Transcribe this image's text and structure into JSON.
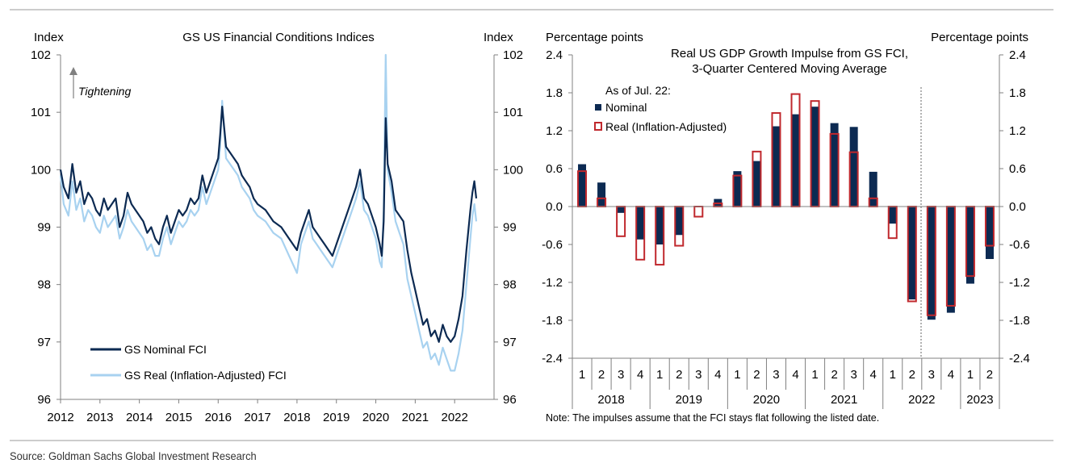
{
  "source": "Source: Goldman Sachs Global Investment Research",
  "chart_data": [
    {
      "type": "line",
      "title": "GS US Financial Conditions Indices",
      "ylabel_left": "Index",
      "ylabel_right": "Index",
      "ylim": [
        96,
        102
      ],
      "yticks": [
        96,
        97,
        98,
        99,
        100,
        101,
        102
      ],
      "xlim": [
        2012,
        2023
      ],
      "xticks": [
        2012,
        2013,
        2014,
        2015,
        2016,
        2017,
        2018,
        2019,
        2020,
        2021,
        2022
      ],
      "annotation": "Tightening",
      "legend": [
        "GS Nominal FCI",
        "GS Real (Inflation-Adjusted) FCI"
      ],
      "legend_position": "bottom-left",
      "series": [
        {
          "name": "GS Nominal FCI",
          "color": "#0c2a52",
          "x": [
            2012.0,
            2012.08,
            2012.2,
            2012.3,
            2012.4,
            2012.5,
            2012.6,
            2012.7,
            2012.8,
            2012.9,
            2013.0,
            2013.1,
            2013.2,
            2013.3,
            2013.4,
            2013.5,
            2013.6,
            2013.7,
            2013.8,
            2013.9,
            2014.0,
            2014.1,
            2014.2,
            2014.3,
            2014.4,
            2014.5,
            2014.6,
            2014.7,
            2014.8,
            2014.9,
            2015.0,
            2015.1,
            2015.2,
            2015.3,
            2015.4,
            2015.5,
            2015.6,
            2015.7,
            2015.8,
            2015.9,
            2016.0,
            2016.05,
            2016.1,
            2016.2,
            2016.3,
            2016.4,
            2016.5,
            2016.6,
            2016.7,
            2016.8,
            2016.9,
            2017.0,
            2017.2,
            2017.4,
            2017.6,
            2017.8,
            2018.0,
            2018.1,
            2018.2,
            2018.3,
            2018.4,
            2018.5,
            2018.6,
            2018.7,
            2018.8,
            2018.9,
            2019.0,
            2019.1,
            2019.2,
            2019.3,
            2019.4,
            2019.5,
            2019.6,
            2019.7,
            2019.8,
            2019.9,
            2020.0,
            2020.1,
            2020.15,
            2020.2,
            2020.25,
            2020.3,
            2020.4,
            2020.5,
            2020.6,
            2020.7,
            2020.8,
            2020.9,
            2021.0,
            2021.1,
            2021.2,
            2021.3,
            2021.4,
            2021.5,
            2021.6,
            2021.7,
            2021.8,
            2021.9,
            2022.0,
            2022.1,
            2022.2,
            2022.3,
            2022.4,
            2022.45,
            2022.5,
            2022.55
          ],
          "values": [
            100.0,
            99.7,
            99.5,
            100.1,
            99.6,
            99.8,
            99.4,
            99.6,
            99.5,
            99.3,
            99.2,
            99.5,
            99.3,
            99.4,
            99.5,
            99.0,
            99.2,
            99.6,
            99.4,
            99.3,
            99.2,
            99.1,
            98.9,
            99.0,
            98.8,
            98.7,
            99.0,
            99.2,
            98.9,
            99.1,
            99.3,
            99.2,
            99.3,
            99.5,
            99.4,
            99.5,
            99.9,
            99.6,
            99.8,
            100.0,
            100.2,
            100.6,
            101.1,
            100.4,
            100.3,
            100.2,
            100.1,
            99.9,
            99.8,
            99.7,
            99.5,
            99.4,
            99.3,
            99.1,
            99.0,
            98.8,
            98.6,
            98.9,
            99.1,
            99.3,
            99.0,
            98.9,
            98.8,
            98.7,
            98.6,
            98.5,
            98.7,
            98.9,
            99.1,
            99.3,
            99.5,
            99.7,
            100.0,
            99.5,
            99.4,
            99.2,
            99.0,
            98.7,
            98.5,
            99.1,
            100.9,
            100.1,
            99.8,
            99.3,
            99.2,
            99.1,
            98.6,
            98.2,
            97.9,
            97.6,
            97.3,
            97.4,
            97.1,
            97.2,
            97.0,
            97.3,
            97.1,
            97.0,
            97.1,
            97.4,
            97.8,
            98.6,
            99.3,
            99.6,
            99.8,
            99.5
          ]
        },
        {
          "name": "GS Real (Inflation-Adjusted) FCI",
          "color": "#a8d2f0",
          "x": [
            2012.0,
            2012.08,
            2012.2,
            2012.3,
            2012.4,
            2012.5,
            2012.6,
            2012.7,
            2012.8,
            2012.9,
            2013.0,
            2013.1,
            2013.2,
            2013.3,
            2013.4,
            2013.5,
            2013.6,
            2013.7,
            2013.8,
            2013.9,
            2014.0,
            2014.1,
            2014.2,
            2014.3,
            2014.4,
            2014.5,
            2014.6,
            2014.7,
            2014.8,
            2014.9,
            2015.0,
            2015.1,
            2015.2,
            2015.3,
            2015.4,
            2015.5,
            2015.6,
            2015.7,
            2015.8,
            2015.9,
            2016.0,
            2016.05,
            2016.1,
            2016.2,
            2016.3,
            2016.4,
            2016.5,
            2016.6,
            2016.7,
            2016.8,
            2016.9,
            2017.0,
            2017.2,
            2017.4,
            2017.6,
            2017.8,
            2018.0,
            2018.1,
            2018.2,
            2018.3,
            2018.4,
            2018.5,
            2018.6,
            2018.7,
            2018.8,
            2018.9,
            2019.0,
            2019.1,
            2019.2,
            2019.3,
            2019.4,
            2019.5,
            2019.6,
            2019.7,
            2019.8,
            2019.9,
            2020.0,
            2020.1,
            2020.15,
            2020.2,
            2020.25,
            2020.3,
            2020.4,
            2020.5,
            2020.6,
            2020.7,
            2020.8,
            2020.9,
            2021.0,
            2021.1,
            2021.2,
            2021.3,
            2021.4,
            2021.5,
            2021.6,
            2021.7,
            2021.8,
            2021.9,
            2022.0,
            2022.1,
            2022.2,
            2022.3,
            2022.4,
            2022.45,
            2022.5,
            2022.55
          ],
          "values": [
            99.9,
            99.4,
            99.2,
            99.8,
            99.3,
            99.5,
            99.1,
            99.3,
            99.2,
            99.0,
            98.9,
            99.2,
            99.0,
            99.1,
            99.2,
            98.8,
            99.0,
            99.3,
            99.1,
            99.0,
            98.9,
            98.8,
            98.6,
            98.7,
            98.5,
            98.5,
            98.8,
            99.0,
            98.7,
            98.9,
            99.1,
            99.0,
            99.1,
            99.3,
            99.2,
            99.3,
            99.7,
            99.4,
            99.6,
            99.8,
            100.0,
            100.4,
            101.2,
            100.2,
            100.1,
            100.0,
            99.9,
            99.7,
            99.6,
            99.5,
            99.3,
            99.2,
            99.1,
            98.9,
            98.8,
            98.5,
            98.2,
            98.7,
            98.9,
            99.1,
            98.8,
            98.7,
            98.6,
            98.5,
            98.4,
            98.3,
            98.5,
            98.7,
            98.9,
            99.1,
            99.3,
            99.5,
            99.8,
            99.3,
            99.2,
            99.0,
            98.8,
            98.4,
            98.3,
            99.3,
            102.0,
            100.0,
            99.6,
            99.1,
            98.9,
            98.7,
            98.1,
            97.8,
            97.5,
            97.2,
            96.9,
            97.0,
            96.7,
            96.8,
            96.6,
            96.9,
            96.7,
            96.5,
            96.5,
            96.8,
            97.2,
            98.0,
            98.8,
            99.2,
            99.4,
            99.1
          ]
        }
      ]
    },
    {
      "type": "bar",
      "title": "Real US GDP Growth Impulse from GS FCI,",
      "subtitle": "3-Quarter Centered Moving Average",
      "ylabel_left": "Percentage points",
      "ylabel_right": "Percentage points",
      "ylim": [
        -2.4,
        2.4
      ],
      "yticks": [
        "-2.4",
        "-1.8",
        "-1.2",
        "-0.6",
        "0.0",
        "0.6",
        "1.2",
        "1.8",
        "2.4"
      ],
      "legend_header": "As of Jul. 22:",
      "legend_position": "top-left",
      "categories": [
        "1",
        "2",
        "3",
        "4",
        "1",
        "2",
        "3",
        "4",
        "1",
        "2",
        "3",
        "4",
        "1",
        "2",
        "3",
        "4",
        "1",
        "2",
        "3",
        "4",
        "1",
        "2"
      ],
      "years": [
        "2018",
        "2019",
        "2020",
        "2021",
        "2022",
        "2023"
      ],
      "note": "Note: The impulses assume that the FCI stays flat following the listed date.",
      "series": [
        {
          "name": "Nominal",
          "color": "#0c2a52",
          "values": [
            0.67,
            0.38,
            -0.1,
            -0.52,
            -0.6,
            -0.45,
            0.0,
            0.12,
            0.56,
            0.72,
            1.27,
            1.46,
            1.58,
            1.32,
            1.26,
            0.55,
            -0.27,
            -1.47,
            -1.79,
            -1.68,
            -1.22,
            -0.83
          ]
        },
        {
          "name": "Real (Inflation-Adjusted)",
          "color": "#c0282d",
          "values": [
            0.56,
            0.13,
            -0.47,
            -0.84,
            -0.92,
            -0.62,
            -0.16,
            0.05,
            0.49,
            0.87,
            1.48,
            1.78,
            1.67,
            1.15,
            0.86,
            0.13,
            -0.5,
            -1.5,
            -1.72,
            -1.57,
            -1.1,
            -0.62
          ]
        }
      ]
    }
  ]
}
